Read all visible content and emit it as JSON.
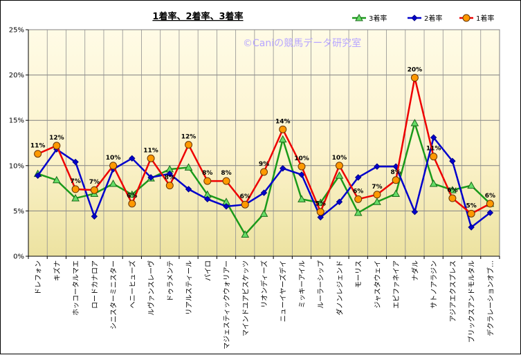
{
  "chart_data": {
    "type": "line",
    "title": "1着率、2着率、3着率",
    "watermark": "©Caniの競馬データ研究室",
    "ylim": [
      0,
      25
    ],
    "yticks": [
      0,
      5,
      10,
      15,
      20,
      25
    ],
    "ytick_labels": [
      "0%",
      "5%",
      "10%",
      "15%",
      "20%",
      "25%"
    ],
    "grid": true,
    "legend_position": "top-right",
    "categories": [
      "ドレフォン",
      "キズナ",
      "ホッコータルマエ",
      "ロードカナロア",
      "シニスターミニスター",
      "ヘニーヒューズ",
      "ルヴァンスレーヴ",
      "ドゥラメンテ",
      "リアルスティール",
      "パイロ",
      "マジェスティックウォリアー",
      "マインドユアビスケッツ",
      "リオンディーズ",
      "ニューイヤーズデイ",
      "ミッキーアイル",
      "ルーラーシップ",
      "ダノンレジェンド",
      "モーリス",
      "ジャスタウェイ",
      "エピファネイア",
      "ナダル",
      "サトノアラジン",
      "アジアエクスプレス",
      "ブリックスアンドモルタル",
      "デクラレーションオブ…"
    ],
    "series": [
      {
        "name": "3着率",
        "color": "#1a9a1a",
        "marker": "triangle",
        "marker_fill": "#66dd66",
        "values": [
          9.1,
          8.4,
          6.4,
          6.9,
          8.0,
          6.8,
          8.6,
          9.6,
          9.8,
          6.8,
          6.0,
          2.4,
          4.7,
          12.9,
          6.3,
          5.9,
          8.9,
          4.8,
          6.0,
          6.9,
          14.7,
          8.0,
          7.3,
          7.8,
          5.8
        ]
      },
      {
        "name": "2着率",
        "color": "#0000cc",
        "marker": "diamond",
        "marker_fill": "#0000cc",
        "values": [
          8.9,
          11.8,
          10.4,
          4.4,
          9.6,
          10.8,
          8.7,
          9.1,
          7.4,
          6.3,
          5.5,
          5.7,
          7.0,
          9.7,
          9.0,
          4.3,
          6.0,
          8.7,
          9.9,
          9.9,
          4.9,
          13.1,
          10.5,
          3.2,
          4.8
        ]
      },
      {
        "name": "1着率",
        "color": "#ee0000",
        "marker": "circle",
        "marker_fill": "#ff9900",
        "values": [
          11.3,
          12.2,
          7.4,
          7.3,
          10.0,
          5.8,
          10.8,
          7.8,
          12.3,
          8.3,
          8.3,
          5.7,
          9.3,
          14.0,
          9.9,
          4.9,
          10.0,
          6.3,
          6.8,
          8.4,
          19.7,
          11.0,
          6.4,
          4.7,
          5.8
        ]
      }
    ],
    "data_labels": [
      "11%",
      "12%",
      "7%",
      "7%",
      "10%",
      "6%",
      "11%",
      "8%",
      "12%",
      "8%",
      "8%",
      "6%",
      "9%",
      "14%",
      "10%",
      "5%",
      "10%",
      "6%",
      "7%",
      "8%",
      "20%",
      "11%",
      "6%",
      "5%",
      "6%"
    ]
  }
}
